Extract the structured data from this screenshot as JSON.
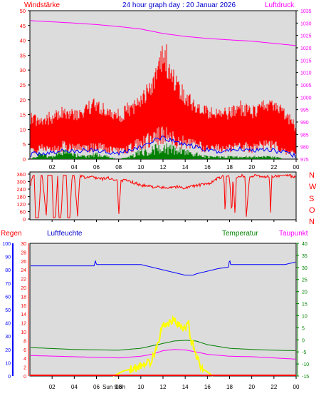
{
  "header": {
    "left_label": "Windstärke",
    "title": "24 hour graph day : 20 Januar 2026",
    "right_label": "Luftdruck"
  },
  "bottom_header": {
    "regen": "Regen",
    "luftfeuchte": "Luftfeuchte",
    "temperatur": "Temperatur",
    "taupunkt": "Taupunkt"
  },
  "direction_labels": [
    "N",
    "W",
    "S",
    "O",
    "N"
  ],
  "sun_label": "Sun 9.6h",
  "colors": {
    "wind": "#ff0000",
    "wind_avg": "#0000ff",
    "solar": "#008000",
    "pressure": "#ff00ff",
    "direction": "#ff0000",
    "humidity": "#0000ff",
    "temperature": "#008000",
    "dewpoint": "#ff00ff",
    "rain": "#ff0000",
    "sun": "#ffff00",
    "panel": "#dcdcdc"
  },
  "chart_data": [
    {
      "type": "line",
      "panel": "wind_pressure",
      "title": "24 hour graph day : 20 Januar 2026",
      "x_ticks": [
        "02",
        "04",
        "06",
        "08",
        "10",
        "12",
        "14",
        "16",
        "18",
        "20",
        "22",
        "00"
      ],
      "y_left_label": "Windstärke",
      "y_left_ticks": [
        "0",
        "5",
        "10",
        "15",
        "20",
        "25",
        "30",
        "35",
        "40",
        "45",
        "50"
      ],
      "y_left_lim": [
        0,
        50
      ],
      "y_right_label": "Luftdruck",
      "y_right_ticks": [
        "975",
        "980",
        "985",
        "990",
        "995",
        "1000",
        "1005",
        "1010",
        "1015",
        "1020",
        "1025",
        "1030",
        "1035"
      ],
      "y_right_lim": [
        975,
        1035
      ],
      "series": [
        {
          "name": "Luftdruck",
          "axis": "right",
          "x": [
            0,
            2,
            4,
            6,
            8,
            10,
            12,
            14,
            16,
            18,
            20,
            22,
            24
          ],
          "values": [
            1031,
            1030.5,
            1030,
            1029.4,
            1028.6,
            1027.6,
            1025.8,
            1024.6,
            1023.8,
            1023.2,
            1022.7,
            1021.8,
            1020.9
          ]
        },
        {
          "name": "Windstärke max",
          "axis": "left",
          "x": [
            0,
            1,
            2,
            3,
            4,
            5,
            6,
            7,
            8,
            9,
            10,
            11,
            12,
            13,
            14,
            15,
            16,
            17,
            18,
            19,
            20,
            21,
            22,
            23,
            24
          ],
          "values": [
            16,
            14,
            16,
            18,
            17,
            19,
            21,
            18,
            16,
            19,
            22,
            28,
            40,
            30,
            24,
            20,
            18,
            17,
            18,
            19,
            18,
            20,
            21,
            18,
            12
          ]
        },
        {
          "name": "Windstärke min",
          "axis": "left",
          "x": [
            0,
            1,
            2,
            3,
            4,
            5,
            6,
            7,
            8,
            9,
            10,
            11,
            12,
            13,
            14,
            15,
            16,
            17,
            18,
            19,
            20,
            21,
            22,
            23,
            24
          ],
          "values": [
            3,
            4,
            3,
            5,
            4,
            4,
            5,
            4,
            3,
            4,
            6,
            8,
            9,
            7,
            6,
            5,
            4,
            4,
            4,
            5,
            4,
            5,
            5,
            3,
            2
          ]
        },
        {
          "name": "Windstärke avg",
          "axis": "left",
          "x": [
            0,
            1,
            2,
            3,
            4,
            5,
            6,
            7,
            8,
            9,
            10,
            11,
            12,
            13,
            14,
            15,
            16,
            17,
            18,
            19,
            20,
            21,
            22,
            23,
            24
          ],
          "values": [
            1.5,
            2,
            2,
            3,
            2.5,
            3,
            3,
            2.5,
            2,
            3,
            4,
            6,
            7,
            6,
            5,
            4,
            3,
            2.5,
            3,
            3.5,
            3,
            3.5,
            3,
            2,
            1
          ]
        },
        {
          "name": "Solar",
          "axis": "left",
          "x": [
            0,
            1,
            2,
            3,
            4,
            5,
            6,
            7,
            8,
            9,
            10,
            11,
            12,
            13,
            14,
            15,
            16,
            17,
            18,
            19,
            20,
            21,
            22,
            23,
            24
          ],
          "values": [
            0,
            2,
            1,
            3,
            2,
            1,
            2,
            1,
            0,
            1,
            3,
            4,
            5,
            4,
            3,
            2,
            1,
            1,
            1,
            1,
            1,
            1,
            1,
            0,
            0
          ]
        }
      ]
    },
    {
      "type": "line",
      "panel": "wind_direction",
      "y_ticks": [
        "0",
        "60",
        "120",
        "180",
        "240",
        "300",
        "360"
      ],
      "y_lim": [
        0,
        360
      ],
      "series": [
        {
          "name": "Windrichtung",
          "x": [
            0,
            0.3,
            0.4,
            0.5,
            0.8,
            1.0,
            1.1,
            1.5,
            1.6,
            2.0,
            2.1,
            2.3,
            2.5,
            2.6,
            2.8,
            3.0,
            3.3,
            3.4,
            3.6,
            3.8,
            4.0,
            4.3,
            4.5,
            4.8,
            5.0,
            5.5,
            6.0,
            6.5,
            7.0,
            7.5,
            7.9,
            8.0,
            8.2,
            8.5,
            9.0,
            9.5,
            10.0,
            11.0,
            12.0,
            13.0,
            14.0,
            15.0,
            16.0,
            16.5,
            17.0,
            17.5,
            17.6,
            17.7,
            18.0,
            18.2,
            18.3,
            18.5,
            18.6,
            19.0,
            19.4,
            19.5,
            19.8,
            20.0,
            20.5,
            21.0,
            21.6,
            21.7,
            21.8,
            22.0,
            22.5,
            23.0,
            24.0
          ],
          "values": [
            260,
            350,
            350,
            10,
            10,
            350,
            350,
            10,
            350,
            350,
            10,
            10,
            350,
            10,
            10,
            350,
            350,
            10,
            10,
            350,
            350,
            20,
            340,
            340,
            330,
            340,
            330,
            320,
            330,
            320,
            310,
            10,
            300,
            310,
            300,
            290,
            270,
            260,
            250,
            260,
            250,
            270,
            280,
            300,
            330,
            340,
            10,
            340,
            340,
            30,
            340,
            20,
            340,
            350,
            340,
            10,
            340,
            340,
            350,
            340,
            340,
            20,
            340,
            340,
            350,
            350,
            340
          ]
        }
      ]
    },
    {
      "type": "line",
      "panel": "climate",
      "x_ticks": [
        "02",
        "04",
        "06",
        "08",
        "10",
        "12",
        "14",
        "16",
        "18",
        "20",
        "22",
        "00"
      ],
      "y_regen_ticks": [
        "0",
        "10",
        "20",
        "30",
        "40",
        "50",
        "60",
        "70",
        "80",
        "90",
        "100"
      ],
      "y_luftfeuchte_ticks": [
        "0",
        "2",
        "4",
        "6",
        "8",
        "10",
        "12",
        "14",
        "16",
        "18",
        "20",
        "22",
        "24",
        "26",
        "28",
        "30"
      ],
      "y_temp_ticks": [
        "-15",
        "-10",
        "-5",
        "0",
        "5",
        "10",
        "15",
        "20",
        "25",
        "30",
        "35",
        "40"
      ],
      "y_humidity_lim": [
        0,
        100
      ],
      "y_temp_lim": [
        -15,
        40
      ],
      "series": [
        {
          "name": "Luftfeuchte",
          "axis": "humidity",
          "x": [
            0,
            4,
            5.8,
            5.9,
            6.0,
            8,
            10.0,
            11.0,
            12.0,
            13.0,
            14.0,
            14.7,
            15.0,
            16.0,
            17.0,
            17.9,
            18.0,
            18.1,
            20.0,
            22.0,
            23.0,
            24.0
          ],
          "values": [
            83,
            83,
            83,
            87,
            84,
            84,
            84,
            82,
            80,
            78,
            76,
            76,
            77,
            79,
            81,
            82,
            88,
            84,
            84,
            84,
            84,
            86
          ]
        },
        {
          "name": "Temperatur",
          "axis": "temp",
          "x": [
            0,
            4,
            8,
            10,
            11,
            12,
            13,
            14,
            15,
            16,
            18,
            20,
            22,
            24
          ],
          "values": [
            -3.2,
            -4.0,
            -4.3,
            -3.5,
            -2.5,
            -1.5,
            -0.5,
            -0.2,
            -0.5,
            -2.0,
            -3.5,
            -4.0,
            -4.3,
            -4.5
          ]
        },
        {
          "name": "Taupunkt",
          "axis": "temp",
          "x": [
            0,
            4,
            8,
            10,
            11,
            12,
            13,
            14,
            15,
            16,
            18,
            20,
            22,
            24
          ],
          "values": [
            -6.5,
            -7.0,
            -7.5,
            -6.8,
            -6.0,
            -4.5,
            -4.0,
            -4.2,
            -5.0,
            -6.0,
            -6.8,
            -7.0,
            -7.5,
            -8.0
          ]
        },
        {
          "name": "Regen",
          "axis": "rain",
          "x": [
            0,
            24
          ],
          "values": [
            0,
            0
          ]
        },
        {
          "name": "Sonne",
          "axis": "humidity",
          "x": [
            7.5,
            8.0,
            8.5,
            9.0,
            9.5,
            10.0,
            10.5,
            10.8,
            11.0,
            11.5,
            12.0,
            12.5,
            13.0,
            13.5,
            14.0,
            14.3,
            14.5,
            14.8,
            15.0,
            15.5,
            16.0,
            16.5
          ],
          "values": [
            0,
            2,
            4,
            5,
            6,
            8,
            10,
            10,
            12,
            25,
            38,
            40,
            42,
            38,
            35,
            40,
            28,
            22,
            15,
            6,
            3,
            0
          ]
        }
      ]
    }
  ]
}
